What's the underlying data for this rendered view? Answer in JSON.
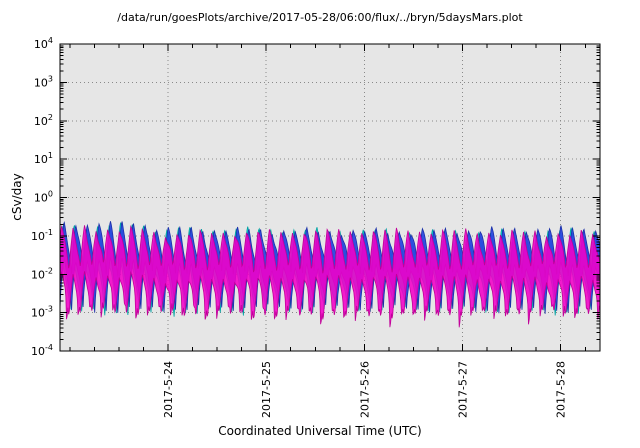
{
  "figure": {
    "title": "/data/run/goesPlots/archive/2017-05-28/06:00/flux/../bryn/5daysMars.plot",
    "xlabel": "Coordinated Universal Time (UTC)",
    "ylabel": "cSv/day"
  },
  "chart_data": {
    "type": "area",
    "title": "/data/run/goesPlots/archive/2017-05-28/06:00/flux/../bryn/5daysMars.plot",
    "xlabel": "Coordinated Universal Time (UTC)",
    "ylabel": "cSv/day",
    "x_axis": {
      "scale": "time",
      "span_days": 5.5,
      "ticks": [
        {
          "label": "2017-5-24",
          "day": 1.1
        },
        {
          "label": "2017-5-25",
          "day": 2.1
        },
        {
          "label": "2017-5-26",
          "day": 3.1
        },
        {
          "label": "2017-5-27",
          "day": 4.1
        },
        {
          "label": "2017-5-28",
          "day": 5.1
        }
      ],
      "minor_tick_days": 0.25,
      "minor_tick_anchor_day": 0.1
    },
    "y_axis": {
      "scale": "log",
      "unit": "cSv/day",
      "min_exponent": -4,
      "max_exponent": 4,
      "tick_exponents": [
        4,
        3,
        2,
        1,
        0,
        -1,
        -2,
        -3,
        -4
      ],
      "grid": "dotted"
    },
    "series": [
      {
        "name": "cyan-band",
        "color": "#00cfcf",
        "edge": "#00a2a2",
        "opacity": 0.95,
        "phase": 0.12,
        "band_width_log": 1.05,
        "peak_adjust_log": 0.0
      },
      {
        "name": "blue-band",
        "color": "#2a48e0",
        "edge": "#1a30a8",
        "opacity": 0.95,
        "phase": 0.0,
        "band_width_log": 0.95,
        "peak_adjust_log": 0.03
      },
      {
        "name": "magenta-band",
        "color": "#f400c8",
        "edge": "#c00098",
        "opacity": 0.88,
        "phase": 0.22,
        "band_width_log": 1.2,
        "peak_adjust_log": -0.05,
        "down_spike_log": 0.5,
        "down_spike_phase": 0.8,
        "down_spike_width": 0.1
      }
    ],
    "pattern": {
      "cycles_per_day": 8.5,
      "peak_log": -0.85,
      "trough_log": -1.95,
      "rise_fraction": 0.35,
      "sharpen_pow": 0.7,
      "noise_log": 0.15,
      "boost_until_day": 0.9,
      "boost_factor": 1.12,
      "samples_per_cycle": 16
    },
    "observed": {
      "description": "Three overlapping oscillating dose-rate bands (blue, cyan, magenta) with sharp sawtooth spikes",
      "peak_cSv_day": 0.12,
      "typical_trough_cSv_day": 0.001,
      "oscillation_cycles_per_day": 8.5,
      "value_range_cSv_day": [
        0.001,
        0.2
      ],
      "plot_background": "#e6e6e6"
    }
  }
}
